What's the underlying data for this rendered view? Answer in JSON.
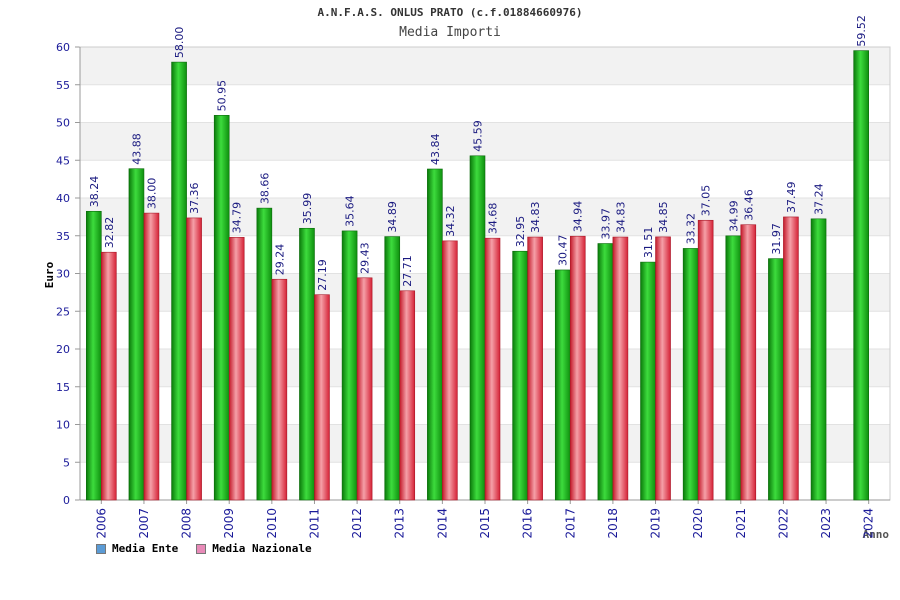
{
  "chart_data": {
    "type": "bar",
    "title": "A.N.F.A.S. ONLUS PRATO (c.f.01884660976)",
    "subtitle": "Media Importi",
    "xlabel": "Anno",
    "ylabel": "Euro",
    "ylim": [
      0,
      60
    ],
    "yticks": [
      0,
      5,
      10,
      15,
      20,
      25,
      30,
      35,
      40,
      45,
      50,
      55,
      60
    ],
    "grid": true,
    "legend_position": "bottom-left",
    "categories": [
      "2006",
      "2007",
      "2008",
      "2009",
      "2010",
      "2011",
      "2012",
      "2013",
      "2014",
      "2015",
      "2016",
      "2017",
      "2018",
      "2019",
      "2020",
      "2021",
      "2022",
      "2023",
      "2024"
    ],
    "series": [
      {
        "name": "Media Ente",
        "color": "#1fb21f",
        "legend_color": "#5b9bd5",
        "values": [
          38.24,
          43.88,
          58.0,
          50.95,
          38.66,
          35.99,
          35.64,
          34.89,
          43.84,
          45.59,
          32.95,
          30.47,
          33.97,
          31.51,
          33.32,
          34.99,
          31.97,
          37.24,
          59.52
        ],
        "labels": [
          "38.24",
          "43.88",
          "58.00",
          "50.95",
          "38.66",
          "35.99",
          "35.64",
          "34.89",
          "43.84",
          "45.59",
          "32.95",
          "30.47",
          "33.97",
          "31.51",
          "33.32",
          "34.99",
          "31.97",
          "37.24",
          "59.52"
        ]
      },
      {
        "name": "Media Nazionale",
        "color": "#e8384a",
        "legend_color": "#e88ab8",
        "values": [
          32.82,
          38.0,
          37.36,
          34.79,
          29.24,
          27.19,
          29.43,
          27.71,
          34.32,
          34.68,
          34.83,
          34.94,
          34.83,
          34.85,
          37.05,
          36.46,
          37.49,
          null,
          null
        ],
        "labels": [
          "32.82",
          "38.00",
          "37.36",
          "34.79",
          "29.24",
          "27.19",
          "29.43",
          "27.71",
          "34.32",
          "34.68",
          "34.83",
          "34.94",
          "34.83",
          "34.85",
          "37.05",
          "36.46",
          "37.49",
          null,
          null
        ]
      }
    ]
  }
}
